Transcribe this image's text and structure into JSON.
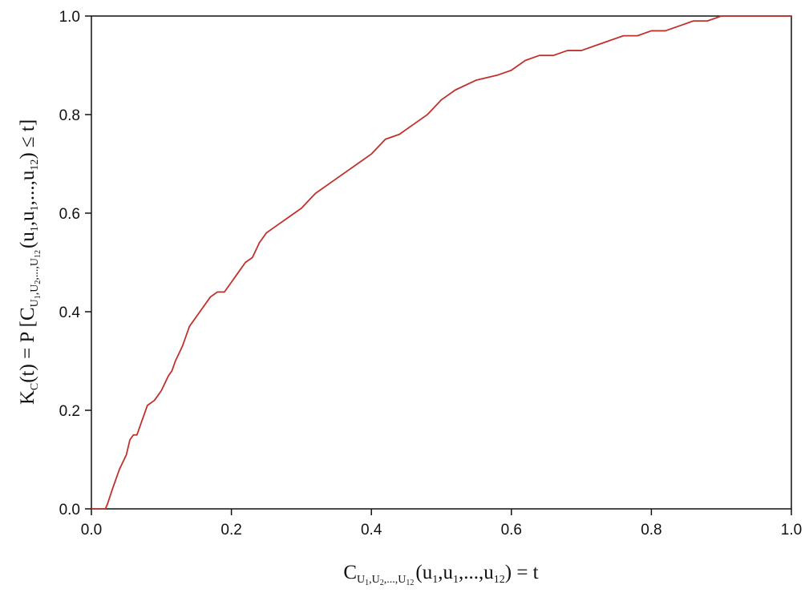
{
  "chart_data": {
    "type": "line",
    "xlim": [
      0.0,
      1.0
    ],
    "ylim": [
      0.0,
      1.0
    ],
    "x_ticks": [
      "0.0",
      "0.2",
      "0.4",
      "0.6",
      "0.8",
      "1.0"
    ],
    "y_ticks": [
      "0.0",
      "0.2",
      "0.4",
      "0.6",
      "0.8",
      "1.0"
    ],
    "grid": false,
    "legend": "none",
    "line_color": "#c0312c",
    "x_label": {
      "main": "C",
      "sub_1": "U",
      "sub_1_idx": "1",
      "sub_2": ",U",
      "sub_2_idx": "2",
      "sub_3": ",...,U",
      "sub_3_idx": "12",
      "tail": "(u",
      "t1": "1",
      "t2": ",u",
      "t3": "1",
      "t4": ",...,u",
      "t5": "12",
      "end": ") = t"
    },
    "y_label": {
      "k": "K",
      "k_sub": "C",
      "mid": "(t) = P [C",
      "s1": "U",
      "s1i": "1",
      "s2": ",U",
      "s2i": "2",
      "s3": ",...,U",
      "s3i": "12",
      "u_open": "(u",
      "u1": "1",
      "u2": ",u",
      "u3": "1",
      "u4": ",...,u",
      "u5": "12",
      "end": ") ≤ t]"
    },
    "series": [
      {
        "x": [
          0.0,
          0.02,
          0.023,
          0.03,
          0.04,
          0.05,
          0.055,
          0.06,
          0.065,
          0.07,
          0.075,
          0.08,
          0.09,
          0.095,
          0.1,
          0.11,
          0.115,
          0.12,
          0.13,
          0.135,
          0.14,
          0.15,
          0.16,
          0.17,
          0.18,
          0.19,
          0.2,
          0.21,
          0.22,
          0.23,
          0.24,
          0.25,
          0.26,
          0.28,
          0.3,
          0.32,
          0.35,
          0.38,
          0.4,
          0.42,
          0.44,
          0.46,
          0.48,
          0.5,
          0.52,
          0.55,
          0.58,
          0.6,
          0.62,
          0.64,
          0.66,
          0.68,
          0.7,
          0.72,
          0.74,
          0.76,
          0.78,
          0.8,
          0.82,
          0.84,
          0.86,
          0.88,
          0.9,
          0.92,
          0.95,
          0.98,
          1.0
        ],
        "y": [
          0.0,
          0.0,
          0.01,
          0.04,
          0.08,
          0.11,
          0.14,
          0.15,
          0.15,
          0.17,
          0.19,
          0.21,
          0.22,
          0.23,
          0.24,
          0.27,
          0.28,
          0.3,
          0.33,
          0.35,
          0.37,
          0.39,
          0.41,
          0.43,
          0.44,
          0.44,
          0.46,
          0.48,
          0.5,
          0.51,
          0.54,
          0.56,
          0.57,
          0.59,
          0.61,
          0.64,
          0.67,
          0.7,
          0.72,
          0.75,
          0.76,
          0.78,
          0.8,
          0.83,
          0.85,
          0.87,
          0.88,
          0.89,
          0.91,
          0.92,
          0.92,
          0.93,
          0.93,
          0.94,
          0.95,
          0.96,
          0.96,
          0.97,
          0.97,
          0.98,
          0.99,
          0.99,
          1.0,
          1.0,
          1.0,
          1.0,
          1.0
        ]
      }
    ]
  }
}
